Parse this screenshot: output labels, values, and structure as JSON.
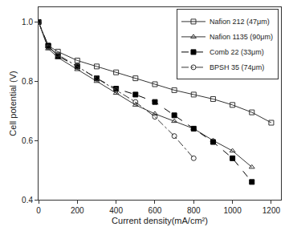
{
  "chart_data": {
    "type": "line",
    "x_label": "Current density(mA/cm²)",
    "y_label": "Cell potential (V)",
    "xlim": [
      0,
      1250
    ],
    "xticks": [
      0,
      200,
      400,
      600,
      800,
      1000,
      1200
    ],
    "ylim": [
      0.4,
      1.05
    ],
    "yticks": [
      0.4,
      0.6,
      0.8,
      {
        "value": 1,
        "label": "1.0"
      }
    ],
    "grid": false,
    "legend": "upper right",
    "series": [
      {
        "name": "Nafion 212 (47μm)",
        "color": "#333333",
        "marker": "square-open",
        "line_style": "solid",
        "x": [
          0,
          50,
          100,
          200,
          300,
          400,
          500,
          600,
          700,
          800,
          900,
          1000,
          1100,
          1200
        ],
        "values": [
          1.0,
          0.92,
          0.9,
          0.87,
          0.85,
          0.83,
          0.81,
          0.79,
          0.77,
          0.755,
          0.74,
          0.72,
          0.695,
          0.66
        ]
      },
      {
        "name": "Nafion 1135 (90μm)",
        "color": "#333333",
        "marker": "triangle-open",
        "line_style": "solid",
        "x": [
          0,
          50,
          100,
          200,
          300,
          400,
          500,
          600,
          700,
          800,
          900,
          1000,
          1100
        ],
        "values": [
          1.0,
          0.91,
          0.88,
          0.84,
          0.8,
          0.76,
          0.72,
          0.69,
          0.665,
          0.64,
          0.6,
          0.565,
          0.51
        ]
      },
      {
        "name": "Comb 22 (33μm)",
        "color": "#000000",
        "marker": "square",
        "line_style": "dash",
        "x": [
          0,
          50,
          100,
          200,
          300,
          400,
          500,
          600,
          700,
          800,
          900,
          1000,
          1100
        ],
        "values": [
          1.0,
          0.92,
          0.885,
          0.85,
          0.81,
          0.775,
          0.755,
          0.73,
          0.685,
          0.64,
          0.595,
          0.54,
          0.46
        ]
      },
      {
        "name": "BPSH 35 (74μm)",
        "color": "#333333",
        "marker": "circle-open",
        "line_style": "dashdot",
        "x": [
          0,
          50,
          100,
          200,
          300,
          400,
          500,
          600,
          700,
          800
        ],
        "values": [
          1.0,
          0.915,
          0.89,
          0.85,
          0.81,
          0.77,
          0.73,
          0.68,
          0.615,
          0.54
        ]
      }
    ]
  }
}
